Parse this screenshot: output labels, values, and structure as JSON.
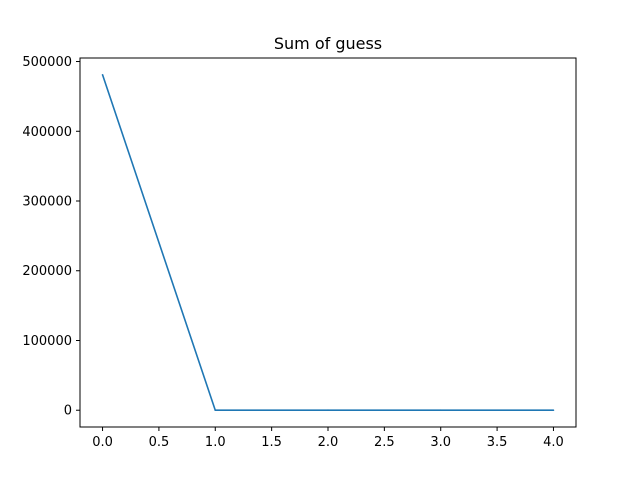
{
  "chart_data": {
    "type": "line",
    "title": "Sum of guess",
    "xlabel": "",
    "ylabel": "",
    "x": [
      0,
      1,
      2,
      3,
      4
    ],
    "series": [
      {
        "values": [
          481000,
          0,
          0,
          0,
          0
        ],
        "color": "#1f77b4"
      }
    ],
    "xlim": [
      -0.2,
      4.2
    ],
    "ylim": [
      -24050,
      505050
    ],
    "xticks": [
      0.0,
      0.5,
      1.0,
      1.5,
      2.0,
      2.5,
      3.0,
      3.5,
      4.0
    ],
    "xtick_labels": [
      "0.0",
      "0.5",
      "1.0",
      "1.5",
      "2.0",
      "2.5",
      "3.0",
      "3.5",
      "4.0"
    ],
    "yticks": [
      0,
      100000,
      200000,
      300000,
      400000,
      500000
    ],
    "ytick_labels": [
      "0",
      "100000",
      "200000",
      "300000",
      "400000",
      "500000"
    ],
    "grid": false,
    "legend": "none"
  }
}
